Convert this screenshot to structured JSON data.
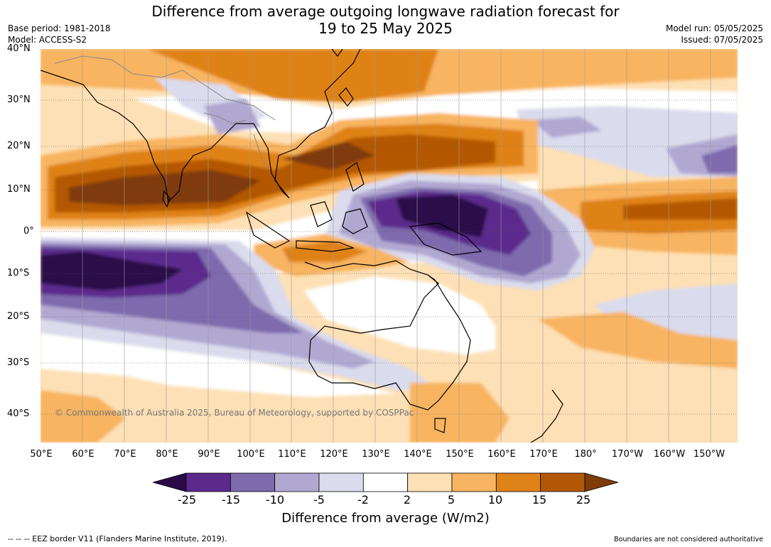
{
  "title_line1": "Difference from average outgoing longwave radiation forecast for",
  "title_line2": "19 to 25 May 2025",
  "base_period": "Base period: 1981-2018",
  "model": "Model: ACCESS-S2",
  "model_run": "Model run: 05/05/2025",
  "issued": "Issued: 07/05/2025",
  "copyright": "© Commonwealth of Australia 2025, Bureau of Meteorology, supported by COSPPac",
  "lat_labels": [
    "40°N",
    "30°N",
    "20°N",
    "10°N",
    "0°",
    "10°S",
    "20°S",
    "30°S",
    "40°S"
  ],
  "lon_labels": [
    "50°E",
    "60°E",
    "70°E",
    "80°E",
    "90°E",
    "100°E",
    "110°E",
    "120°E",
    "130°E",
    "140°E",
    "150°E",
    "160°E",
    "170°E",
    "180°",
    "170°W",
    "160°W",
    "150°W"
  ],
  "colorbar": {
    "ticks": [
      "-25",
      "-15",
      "-10",
      "-5",
      "-2",
      "2",
      "5",
      "10",
      "15",
      "25"
    ],
    "colors": [
      "#2b0a4a",
      "#5b2a8c",
      "#7e6aad",
      "#b1a8d2",
      "#dadbed",
      "#ffffff",
      "#fde0b5",
      "#f8b460",
      "#df8218",
      "#b35806",
      "#7f3b08"
    ],
    "title": "Difference from average (W/m2)"
  },
  "footer_left": "--  --  -- EEZ border V11 (Flanders Marine Institute, 2019).",
  "footer_right": "Boundaries are not considered authoritative"
}
